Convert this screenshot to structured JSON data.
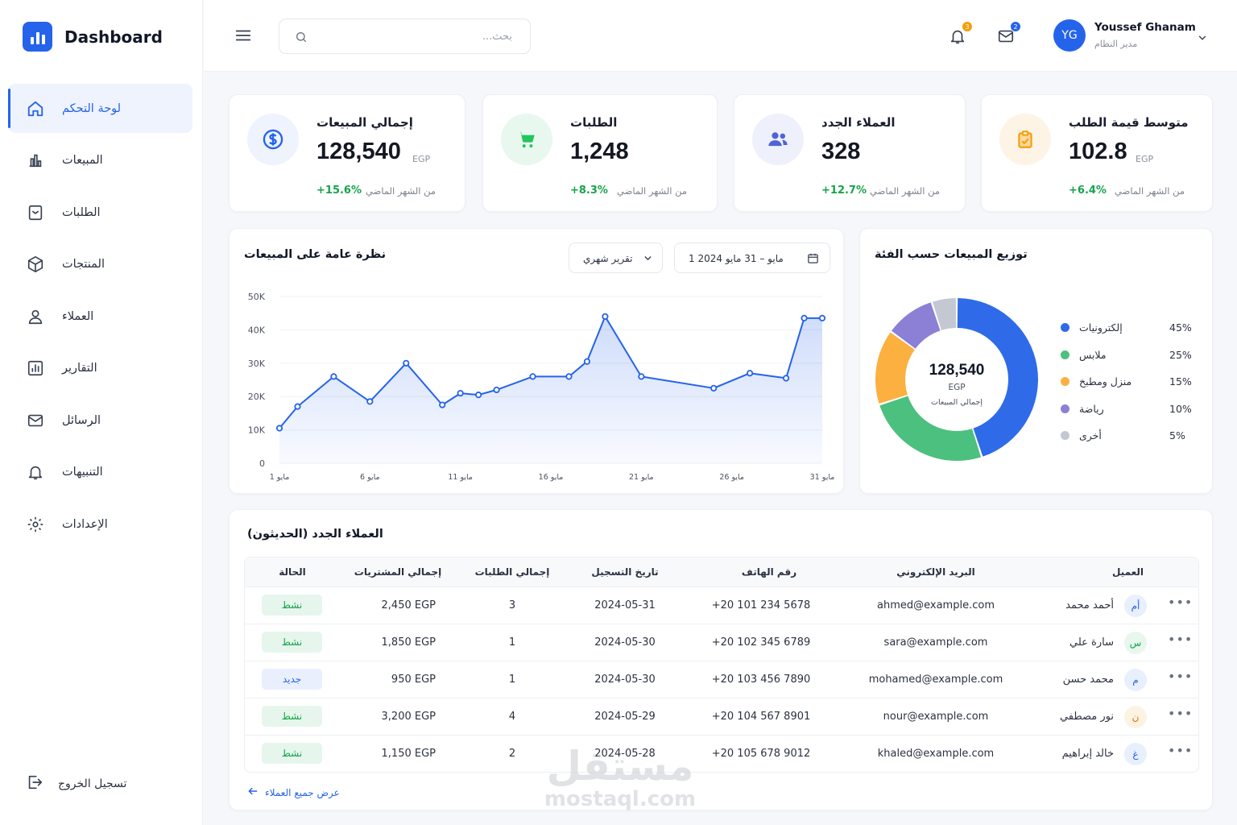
{
  "app": {
    "title": "Dashboard"
  },
  "sidebar": {
    "items": [
      {
        "label": "لوحة التحكم",
        "icon": "home-icon"
      },
      {
        "label": "المبيعات",
        "icon": "bar-chart-icon"
      },
      {
        "label": "الطلبات",
        "icon": "orders-icon"
      },
      {
        "label": "المنتجات",
        "icon": "box-icon"
      },
      {
        "label": "العملاء",
        "icon": "user-icon"
      },
      {
        "label": "التقارير",
        "icon": "report-icon"
      },
      {
        "label": "الرسائل",
        "icon": "mail-icon"
      },
      {
        "label": "التنبيهات",
        "icon": "bell-icon"
      },
      {
        "label": "الإعدادات",
        "icon": "gear-icon"
      }
    ],
    "logout_label": "تسجيل الخروج"
  },
  "header": {
    "search_placeholder": "بحث...",
    "notifications_count": "3",
    "messages_count": "2",
    "user": {
      "initials": "YG",
      "name": "Youssef Ghanam",
      "role": "مدير النظام"
    },
    "colors": {
      "notif_badge": "#f59e0b",
      "msg_badge": "#2563eb"
    }
  },
  "kpis": [
    {
      "title": "إجمالي المبيعات",
      "value": "128,540",
      "unit": "EGP",
      "change": "+15.6%",
      "sub": "من الشهر الماضي",
      "icon": "dollar-icon",
      "color": "#2563eb",
      "bg": "#eef3fe"
    },
    {
      "title": "الطلبات",
      "value": "1,248",
      "unit": "",
      "change": "+8.3%",
      "sub": "من الشهر الماضي",
      "icon": "cart-icon",
      "color": "#22c55e",
      "bg": "#e9f8ef"
    },
    {
      "title": "العملاء الجدد",
      "value": "328",
      "unit": "",
      "change": "+12.7%",
      "sub": "من الشهر الماضي",
      "icon": "users-icon",
      "color": "#4f63d8",
      "bg": "#eef1fb"
    },
    {
      "title": "متوسط قيمة الطلب",
      "value": "102.8",
      "unit": "EGP",
      "change": "+6.4%",
      "sub": "من الشهر الماضي",
      "icon": "clipboard-icon",
      "color": "#f59e0b",
      "bg": "#fef4e6"
    }
  ],
  "sales_overview": {
    "title": "نظرة عامة على المبيعات",
    "report_select": "تقرير شهري",
    "date_range": "1 مايو – 31 مايو 2024"
  },
  "chart_data": [
    {
      "type": "area",
      "title": "نظرة عامة على المبيعات",
      "x_ticks": [
        "1 مايو",
        "6 مايو",
        "11 مايو",
        "16 مايو",
        "21 مايو",
        "26 مايو",
        "31 مايو"
      ],
      "x": [
        1,
        2,
        4,
        6,
        8,
        10,
        11,
        12,
        13,
        15,
        17,
        18,
        19,
        21,
        25,
        27,
        29,
        30,
        31
      ],
      "series": [
        {
          "values": [
            10500,
            17000,
            26000,
            18500,
            30000,
            17500,
            21000,
            20500,
            22000,
            26000,
            26000,
            30500,
            44000,
            26000,
            22500,
            27000,
            25500,
            43500,
            43500
          ]
        }
      ],
      "xlim": [
        1,
        31
      ],
      "ylim": [
        0,
        50000
      ],
      "y_ticks": [
        "0",
        "10K",
        "20K",
        "30K",
        "40K",
        "50K"
      ],
      "grid": true,
      "color": "#2563eb"
    },
    {
      "type": "pie",
      "title": "توزيع المبيعات حسب الفئة",
      "categories": [
        "إلكترونيات",
        "ملابس",
        "منزل ومطبخ",
        "رياضة",
        "أخرى"
      ],
      "values": [
        45,
        25,
        15,
        10,
        5
      ],
      "value_labels": [
        "45%",
        "25%",
        "15%",
        "10%",
        "5%"
      ],
      "colors": [
        "#2f6be8",
        "#4cc07f",
        "#fbb040",
        "#8b7fd6",
        "#c3c8d2"
      ],
      "center_value": "128,540",
      "center_unit": "EGP",
      "center_label": "إجمالي المبيعات"
    }
  ],
  "customers": {
    "title": "العملاء الجدد (الحديثون)",
    "columns": [
      "العميل",
      "البريد الإلكتروني",
      "رقم الهاتف",
      "تاريخ التسجيل",
      "إجمالي الطلبات",
      "إجمالي المشتريات",
      "الحالة"
    ],
    "rows": [
      {
        "initial": "أم",
        "name": "أحمد محمد",
        "email": "ahmed@example.com",
        "phone": "+20 101 234 5678",
        "date": "2024-05-31",
        "orders": "3",
        "total": "2,450 EGP",
        "status": "نشط",
        "status_type": "active",
        "initial_color": "#2563eb",
        "initial_bg": "#e8effd"
      },
      {
        "initial": "س",
        "name": "سارة علي",
        "email": "sara@example.com",
        "phone": "+20 102 345 6789",
        "date": "2024-05-30",
        "orders": "1",
        "total": "1,850 EGP",
        "status": "نشط",
        "status_type": "active",
        "initial_color": "#16a34a",
        "initial_bg": "#e7f7ee"
      },
      {
        "initial": "م",
        "name": "محمد حسن",
        "email": "mohamed@example.com",
        "phone": "+20 103 456 7890",
        "date": "2024-05-30",
        "orders": "1",
        "total": "950 EGP",
        "status": "جديد",
        "status_type": "new",
        "initial_color": "#2563eb",
        "initial_bg": "#e8effd"
      },
      {
        "initial": "ن",
        "name": "نور مصطفي",
        "email": "nour@example.com",
        "phone": "+20 104 567 8901",
        "date": "2024-05-29",
        "orders": "4",
        "total": "3,200 EGP",
        "status": "نشط",
        "status_type": "active",
        "initial_color": "#d97706",
        "initial_bg": "#fdf3e3"
      },
      {
        "initial": "غ",
        "name": "خالد إبراهيم",
        "email": "khaled@example.com",
        "phone": "+20 105 678 9012",
        "date": "2024-05-28",
        "orders": "2",
        "total": "1,150 EGP",
        "status": "نشط",
        "status_type": "active",
        "initial_color": "#2563eb",
        "initial_bg": "#e8effd"
      }
    ],
    "view_all": "عرض جميع العملاء"
  },
  "watermark": {
    "line1": "مستقل",
    "line2": "mostaql.com"
  }
}
